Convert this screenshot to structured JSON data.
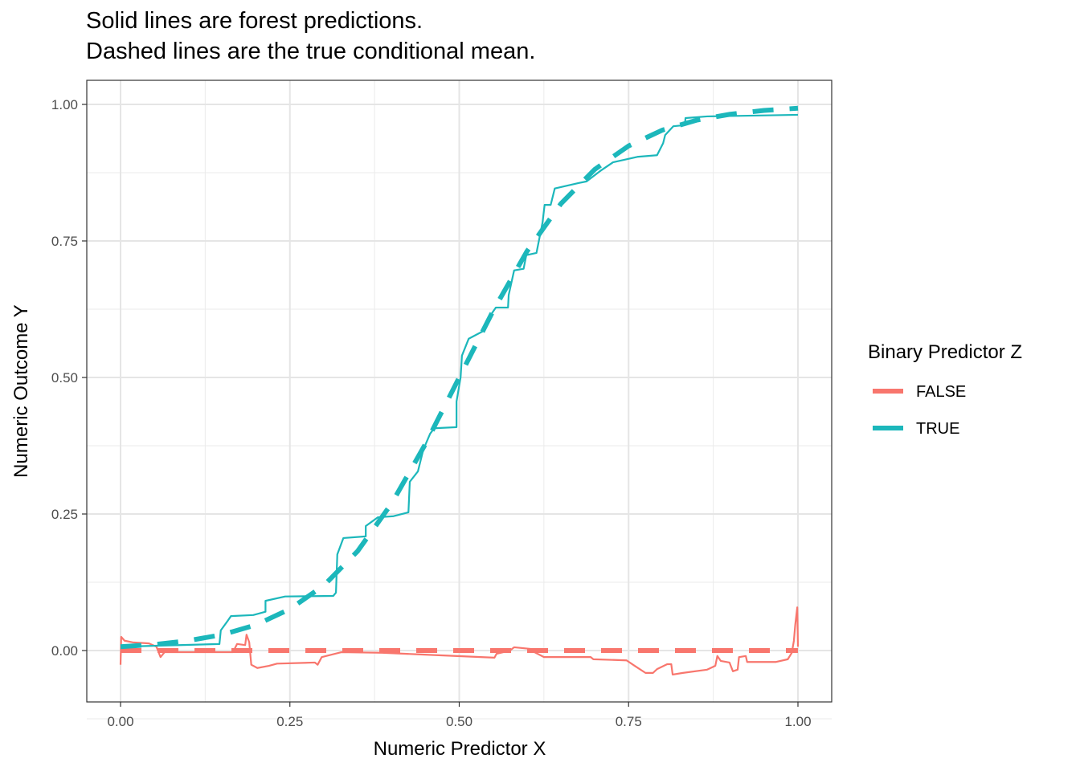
{
  "chart_data": {
    "type": "line",
    "title": [
      "Solid lines are forest predictions.",
      "Dashed lines are the true conditional mean."
    ],
    "xlabel": "Numeric Predictor X",
    "ylabel": "Numeric Outcome Y",
    "xlim": [
      -0.05,
      1.05
    ],
    "ylim": [
      -0.09,
      1.043
    ],
    "xticks": [
      0,
      0.25,
      0.5,
      0.75,
      1
    ],
    "xtick_labels": [
      "0.00",
      "0.25",
      "0.50",
      "0.75",
      "1.00"
    ],
    "yticks": [
      0,
      0.25,
      0.5,
      0.75,
      1
    ],
    "ytick_labels": [
      "0.00",
      "0.25",
      "0.50",
      "0.75",
      "1.00"
    ],
    "grid": true,
    "legend": {
      "title": "Binary Predictor Z",
      "placement": "right",
      "entries": [
        "FALSE",
        "TRUE"
      ]
    },
    "colors": {
      "FALSE": "#F8766D",
      "TRUE": "#1CB7BB"
    },
    "series": [
      {
        "name": "FALSE",
        "kind": "forest prediction",
        "style": "solid",
        "x": [
          0,
          0.001,
          0.006,
          0.018,
          0.042,
          0.053,
          0.059,
          0.065,
          0.166,
          0.172,
          0.184,
          0.186,
          0.19,
          0.193,
          0.202,
          0.219,
          0.231,
          0.287,
          0.291,
          0.297,
          0.326,
          0.386,
          0.439,
          0.552,
          0.555,
          0.575,
          0.581,
          0.605,
          0.611,
          0.625,
          0.694,
          0.698,
          0.747,
          0.759,
          0.775,
          0.786,
          0.792,
          0.807,
          0.813,
          0.815,
          0.83,
          0.866,
          0.878,
          0.881,
          0.886,
          0.899,
          0.904,
          0.911,
          0.913,
          0.923,
          0.925,
          0.967,
          0.985,
          0.991,
          0.994,
          0.996,
          0.999,
          1.0
        ],
        "y": [
          -0.026,
          0.025,
          0.018,
          0.015,
          0.013,
          0.007,
          -0.012,
          -0.003,
          -0.003,
          0.012,
          0.01,
          0.029,
          0.015,
          -0.026,
          -0.032,
          -0.028,
          -0.024,
          -0.022,
          -0.026,
          -0.012,
          -0.003,
          -0.004,
          -0.007,
          -0.013,
          -0.006,
          0,
          0.006,
          0.003,
          -0.003,
          -0.012,
          -0.012,
          -0.016,
          -0.018,
          -0.028,
          -0.041,
          -0.041,
          -0.034,
          -0.025,
          -0.025,
          -0.044,
          -0.041,
          -0.035,
          -0.028,
          -0.01,
          -0.019,
          -0.022,
          -0.038,
          -0.035,
          -0.012,
          -0.01,
          -0.021,
          -0.021,
          -0.016,
          -0.004,
          0.018,
          0.047,
          0.079,
          0.007
        ]
      },
      {
        "name": "TRUE",
        "kind": "forest prediction",
        "style": "solid",
        "x": [
          0,
          0.146,
          0.148,
          0.158,
          0.163,
          0.196,
          0.214,
          0.214,
          0.243,
          0.314,
          0.318,
          0.32,
          0.329,
          0.362,
          0.362,
          0.38,
          0.403,
          0.425,
          0.427,
          0.439,
          0.447,
          0.457,
          0.463,
          0.496,
          0.496,
          0.502,
          0.504,
          0.514,
          0.534,
          0.54,
          0.554,
          0.572,
          0.573,
          0.581,
          0.595,
          0.599,
          0.614,
          0.623,
          0.626,
          0.635,
          0.641,
          0.676,
          0.688,
          0.708,
          0.727,
          0.763,
          0.792,
          0.801,
          0.804,
          0.816,
          0.833,
          0.834,
          0.866,
          1.0
        ],
        "y": [
          0.007,
          0.012,
          0.037,
          0.054,
          0.063,
          0.065,
          0.071,
          0.091,
          0.099,
          0.1,
          0.106,
          0.176,
          0.206,
          0.209,
          0.228,
          0.244,
          0.246,
          0.253,
          0.309,
          0.328,
          0.368,
          0.397,
          0.407,
          0.409,
          0.456,
          0.5,
          0.54,
          0.571,
          0.584,
          0.603,
          0.628,
          0.628,
          0.651,
          0.696,
          0.699,
          0.724,
          0.728,
          0.784,
          0.816,
          0.816,
          0.846,
          0.856,
          0.859,
          0.878,
          0.894,
          0.904,
          0.907,
          0.929,
          0.944,
          0.96,
          0.962,
          0.975,
          0.978,
          0.981
        ]
      },
      {
        "name": "FALSE",
        "kind": "true conditional mean",
        "style": "dashed",
        "x": [
          0,
          1
        ],
        "y": [
          0,
          0
        ]
      },
      {
        "name": "TRUE",
        "kind": "true conditional mean",
        "style": "dashed",
        "x": [
          0,
          0.05,
          0.1,
          0.15,
          0.2,
          0.25,
          0.3,
          0.35,
          0.4,
          0.45,
          0.5,
          0.55,
          0.6,
          0.65,
          0.7,
          0.75,
          0.8,
          0.85,
          0.9,
          0.95,
          1.0
        ],
        "y": [
          0.007,
          0.011,
          0.018,
          0.029,
          0.047,
          0.076,
          0.119,
          0.182,
          0.269,
          0.378,
          0.5,
          0.622,
          0.731,
          0.818,
          0.881,
          0.924,
          0.953,
          0.971,
          0.982,
          0.989,
          0.993
        ]
      }
    ]
  }
}
